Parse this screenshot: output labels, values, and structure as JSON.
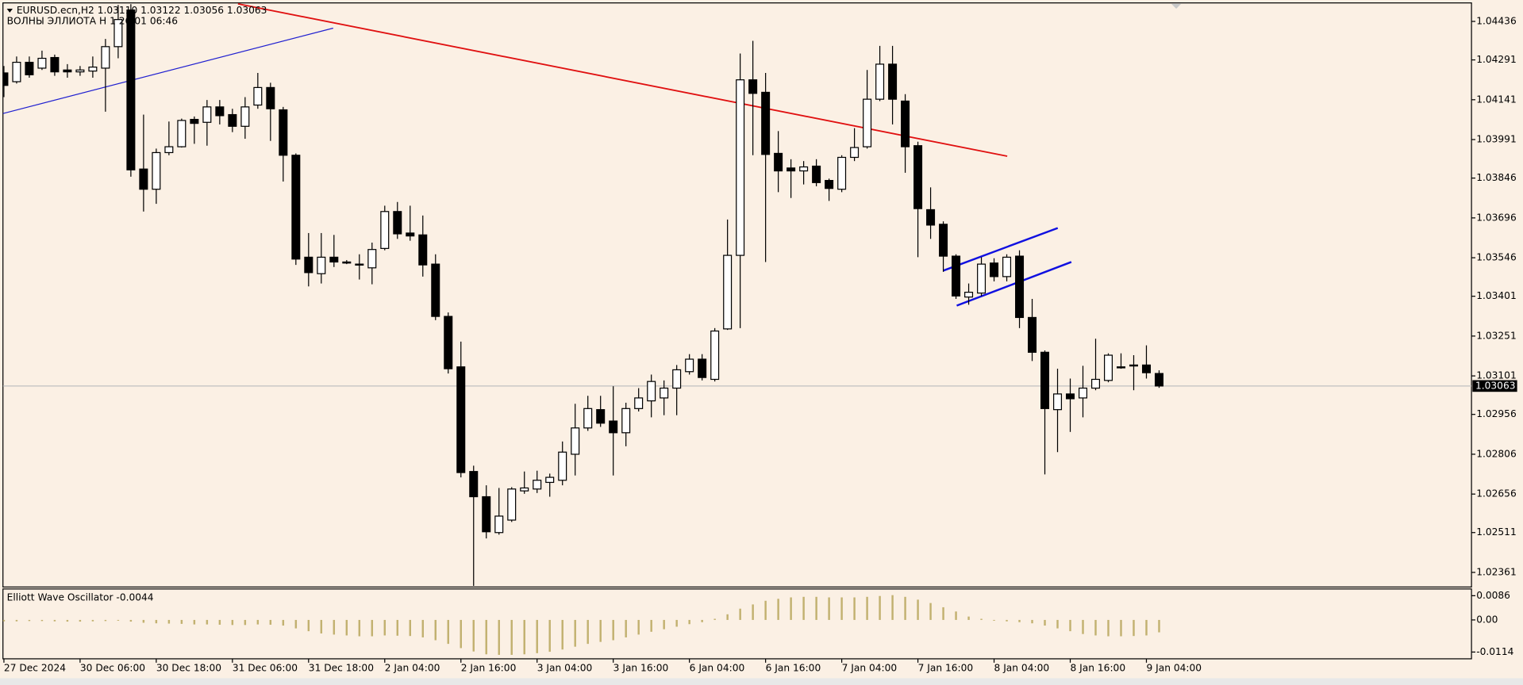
{
  "chart_data": [
    {
      "type": "candlestick",
      "title": "EURUSD.ecn,H2  1.03110 1.03122 1.03056 1.03063",
      "subtitle": "ВОЛНЫ ЭЛЛИОТА H 1 26/01 06:46",
      "categories": [
        "27 Dec 2024",
        null,
        null,
        null,
        null,
        null,
        "30 Dec 06:00",
        null,
        null,
        null,
        null,
        null,
        "30 Dec 18:00",
        null,
        null,
        null,
        null,
        null,
        "31 Dec 06:00",
        null,
        null,
        null,
        null,
        null,
        "31 Dec 18:00",
        null,
        null,
        null,
        null,
        null,
        "2 Jan 04:00",
        null,
        null,
        null,
        null,
        null,
        "2 Jan 16:00",
        null,
        null,
        null,
        null,
        null,
        "3 Jan 04:00",
        null,
        null,
        null,
        null,
        null,
        "3 Jan 16:00",
        null,
        null,
        null,
        null,
        null,
        "6 Jan 04:00",
        null,
        null,
        null,
        null,
        null,
        "6 Jan 16:00",
        null,
        null,
        null,
        null,
        null,
        "7 Jan 04:00",
        null,
        null,
        null,
        null,
        null,
        "7 Jan 16:00",
        null,
        null,
        null,
        null,
        null,
        "8 Jan 04:00",
        null,
        null,
        null,
        null,
        null,
        "8 Jan 16:00",
        null,
        null,
        null,
        null,
        null,
        "9 Jan 04:00",
        null
      ],
      "open": [
        1.04242,
        1.04209,
        1.04282,
        1.0426,
        1.043,
        1.04253,
        1.04246,
        1.04249,
        1.0426,
        1.04341,
        1.04479,
        1.0388,
        1.03804,
        1.03942,
        1.03964,
        1.04067,
        1.04056,
        1.04114,
        1.04085,
        1.04041,
        1.04121,
        1.04187,
        1.04103,
        1.03932,
        1.03548,
        1.03486,
        1.03548,
        1.0353,
        1.03519,
        1.03508,
        1.03581,
        1.0372,
        1.03639,
        1.03632,
        1.03522,
        1.03325,
        1.03135,
        1.02741,
        1.02646,
        1.02511,
        1.02558,
        1.02668,
        1.02675,
        1.027,
        1.02708,
        1.02806,
        1.02905,
        1.02974,
        1.02931,
        1.02887,
        1.02978,
        1.03007,
        1.03018,
        1.03055,
        1.03117,
        1.03164,
        1.03088,
        1.03278,
        1.03555,
        1.04216,
        1.04169,
        1.03939,
        1.03884,
        1.03873,
        1.03891,
        1.03837,
        1.03804,
        1.03924,
        1.03964,
        1.04143,
        1.04275,
        1.04136,
        1.03968,
        1.03727,
        1.03672,
        1.03552,
        1.03398,
        1.03413,
        1.03526,
        1.03475,
        1.03552,
        1.03321,
        1.0319,
        1.02974,
        1.03033,
        1.03018,
        1.03055,
        1.03084,
        1.03132,
        1.03139,
        1.03142,
        1.0311
      ],
      "high": [
        1.04268,
        1.04304,
        1.04304,
        1.04326,
        1.04311,
        1.04275,
        1.04268,
        1.04304,
        1.0437,
        1.04498,
        1.04501,
        1.04085,
        1.03957,
        1.04059,
        1.0407,
        1.04078,
        1.0414,
        1.0414,
        1.04107,
        1.04151,
        1.04242,
        1.04205,
        1.04114,
        1.03939,
        1.03639,
        1.03639,
        1.03632,
        1.03537,
        1.03559,
        1.03603,
        1.03742,
        1.03756,
        1.03742,
        1.03705,
        1.03559,
        1.0334,
        1.0323,
        1.02763,
        1.02689,
        1.02679,
        1.02682,
        1.02741,
        1.02744,
        1.02733,
        1.02854,
        1.02996,
        1.03026,
        1.03026,
        1.03062,
        1.03,
        1.03055,
        1.03106,
        1.03084,
        1.03142,
        1.03183,
        1.03183,
        1.03281,
        1.0369,
        1.04315,
        1.04363,
        1.04242,
        1.04023,
        1.03917,
        1.0391,
        1.03917,
        1.03844,
        1.03932,
        1.04034,
        1.04253,
        1.04344,
        1.04344,
        1.04162,
        1.03983,
        1.03811,
        1.03683,
        1.03559,
        1.03449,
        1.03548,
        1.03544,
        1.03559,
        1.03574,
        1.03391,
        1.03197,
        1.03128,
        1.03091,
        1.03139,
        1.03241,
        1.03186,
        1.03186,
        1.03179,
        1.03216,
        1.03122
      ],
      "low": [
        1.04151,
        1.04202,
        1.04224,
        1.04253,
        1.04231,
        1.04224,
        1.04231,
        1.04224,
        1.04096,
        1.04297,
        1.03851,
        1.0372,
        1.03749,
        1.03932,
        1.03961,
        1.03975,
        1.03968,
        1.04048,
        1.04019,
        1.03994,
        1.04107,
        1.03986,
        1.03833,
        1.03519,
        1.03438,
        1.03449,
        1.03511,
        1.03522,
        1.03464,
        1.03446,
        1.03574,
        1.03617,
        1.0361,
        1.03475,
        1.03311,
        1.0311,
        1.02719,
        1.0231,
        1.02489,
        1.02503,
        1.02551,
        1.02657,
        1.0266,
        1.02646,
        1.02689,
        1.02726,
        1.02894,
        1.02909,
        1.02726,
        1.02836,
        1.02967,
        1.02945,
        1.02953,
        1.02953,
        1.03106,
        1.03084,
        1.0308,
        1.03274,
        1.03281,
        1.03932,
        1.0353,
        1.03793,
        1.03771,
        1.03822,
        1.03815,
        1.0376,
        1.03793,
        1.0391,
        1.03957,
        1.04136,
        1.04048,
        1.03866,
        1.03548,
        1.03617,
        1.03493,
        1.03391,
        1.03369,
        1.03402,
        1.03457,
        1.03457,
        1.03281,
        1.03157,
        1.0273,
        1.02814,
        1.0289,
        1.02945,
        1.03047,
        1.03077,
        1.03128,
        1.03047,
        1.03091,
        1.03056
      ],
      "close": [
        1.04195,
        1.04282,
        1.04235,
        1.04297,
        1.04246,
        1.04246,
        1.04253,
        1.04264,
        1.04341,
        1.04443,
        1.03877,
        1.03804,
        1.03942,
        1.03964,
        1.04063,
        1.04052,
        1.04114,
        1.04081,
        1.04041,
        1.04114,
        1.04187,
        1.04107,
        1.03932,
        1.03541,
        1.0349,
        1.03548,
        1.0353,
        1.03526,
        1.03522,
        1.03577,
        1.0372,
        1.03636,
        1.03628,
        1.03519,
        1.03325,
        1.03128,
        1.02737,
        1.02646,
        1.02514,
        1.02573,
        1.02675,
        1.02679,
        1.02708,
        1.02719,
        1.02814,
        1.02905,
        1.02978,
        1.02923,
        1.02887,
        1.02978,
        1.03018,
        1.0308,
        1.03055,
        1.03124,
        1.03164,
        1.03095,
        1.0327,
        1.03555,
        1.04216,
        1.04165,
        1.03935,
        1.03873,
        1.03873,
        1.03888,
        1.03829,
        1.03807,
        1.03924,
        1.03961,
        1.04143,
        1.04275,
        1.04143,
        1.03964,
        1.03731,
        1.03669,
        1.03552,
        1.03402,
        1.03416,
        1.03522,
        1.03475,
        1.03548,
        1.03321,
        1.0319,
        1.02978,
        1.03033,
        1.03015,
        1.03055,
        1.03088,
        1.03179,
        1.03135,
        1.03142,
        1.03113,
        1.03063
      ],
      "up_color": "#ffffff",
      "down_color": "#000000",
      "ylim": [
        1.02306,
        1.04502
      ],
      "yticks": [
        1.04436,
        1.04291,
        1.04141,
        1.03991,
        1.03846,
        1.03696,
        1.03546,
        1.03401,
        1.03251,
        1.03101,
        1.02956,
        1.02806,
        1.02656,
        1.02511,
        1.02361
      ],
      "last_price": 1.03063
    },
    {
      "type": "bar",
      "title": "Elliott Wave Oscillator -0.0044",
      "values": [
        -0.0005,
        -0.0005,
        -0.0004,
        -0.0004,
        -0.0005,
        -0.0006,
        -0.0006,
        -0.0005,
        -0.0004,
        -0.0002,
        -0.0006,
        -0.001,
        -0.0012,
        -0.0013,
        -0.0014,
        -0.0016,
        -0.0016,
        -0.0017,
        -0.0018,
        -0.0018,
        -0.0016,
        -0.0017,
        -0.002,
        -0.003,
        -0.004,
        -0.0048,
        -0.0052,
        -0.0055,
        -0.0058,
        -0.0058,
        -0.0055,
        -0.0056,
        -0.0057,
        -0.0062,
        -0.0072,
        -0.0085,
        -0.01,
        -0.0112,
        -0.0122,
        -0.0124,
        -0.0124,
        -0.0122,
        -0.0118,
        -0.0113,
        -0.0105,
        -0.0095,
        -0.0085,
        -0.0078,
        -0.0072,
        -0.0062,
        -0.0052,
        -0.0042,
        -0.0033,
        -0.0024,
        -0.0015,
        -0.0008,
        0.0004,
        0.002,
        0.004,
        0.0055,
        0.0068,
        0.0075,
        0.008,
        0.0082,
        0.0082,
        0.008,
        0.008,
        0.008,
        0.0082,
        0.0085,
        0.0088,
        0.0082,
        0.0072,
        0.006,
        0.0045,
        0.003,
        0.0012,
        0.0004,
        -0.0002,
        -0.0005,
        -0.0008,
        -0.0012,
        -0.002,
        -0.003,
        -0.004,
        -0.005,
        -0.0055,
        -0.0058,
        -0.0058,
        -0.0057,
        -0.0055,
        -0.0044
      ],
      "color": "#c2b170",
      "ylim": [
        -0.0138,
        0.011
      ],
      "yticks": [
        0.0086,
        {
          "value": 0,
          "label": "0.00"
        },
        -0.0114
      ]
    }
  ]
}
